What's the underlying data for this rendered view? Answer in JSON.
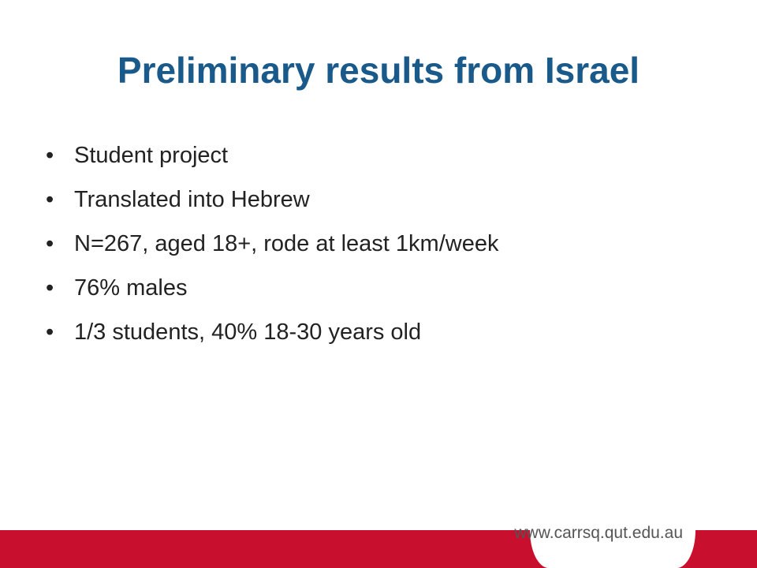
{
  "header": {
    "title": "Preliminary results from Israel"
  },
  "bullets": [
    "Student project",
    "Translated into Hebrew",
    "N=267, aged 18+, rode at least 1km/week",
    "76% males",
    "1/3 students, 40% 18-30 years old"
  ],
  "footer": {
    "url": "www.carrsq.qut.edu.au"
  }
}
